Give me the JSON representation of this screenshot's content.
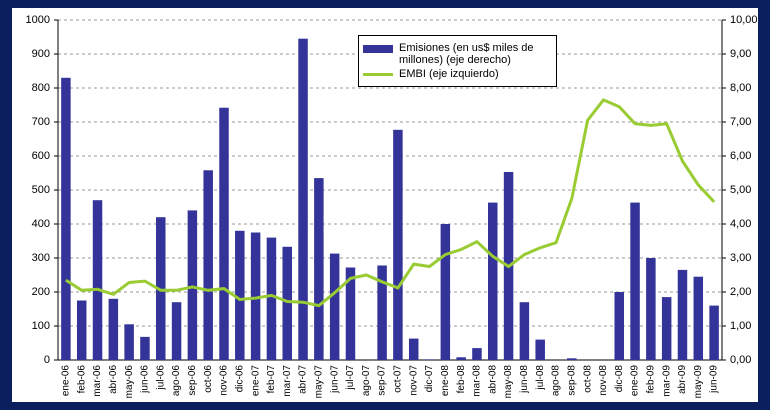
{
  "chart_data": {
    "type": "bar-line",
    "categories": [
      "ene-06",
      "feb-06",
      "mar-06",
      "abr-06",
      "may-06",
      "jun-06",
      "jul-06",
      "ago-06",
      "sep-06",
      "oct-06",
      "nov-06",
      "dic-06",
      "ene-07",
      "feb-07",
      "mar-07",
      "abr-07",
      "may-07",
      "jun-07",
      "jul-07",
      "ago-07",
      "sep-07",
      "oct-07",
      "nov-07",
      "dic-07",
      "ene-08",
      "feb-08",
      "mar-08",
      "abr-08",
      "may-08",
      "jun-08",
      "jul-08",
      "ago-08",
      "sep-08",
      "oct-08",
      "nov-08",
      "dic-08",
      "ene-09",
      "feb-09",
      "mar-09",
      "abr-09",
      "may-09",
      "jun-09"
    ],
    "series": [
      {
        "name": "Emisiones (en us$ miles de millones) (eje derecho)",
        "type": "bar",
        "axis": "y2",
        "color": "#333399",
        "values": [
          8.3,
          1.75,
          4.7,
          1.8,
          1.05,
          0.68,
          4.2,
          1.7,
          4.4,
          5.58,
          7.42,
          3.8,
          3.75,
          3.6,
          3.33,
          9.45,
          5.35,
          3.13,
          2.72,
          0,
          2.78,
          6.77,
          0.63,
          0.02,
          4.0,
          0.08,
          0.35,
          4.63,
          5.53,
          1.7,
          0.6,
          0,
          0.05,
          0,
          0,
          2.0,
          4.63,
          3.0,
          1.85,
          2.65,
          2.45,
          1.6
        ]
      },
      {
        "name": "EMBI (eje izquierdo)",
        "type": "line",
        "color": "#99cc33",
        "values": [
          235,
          205,
          208,
          193,
          228,
          232,
          205,
          205,
          215,
          205,
          210,
          178,
          182,
          190,
          172,
          170,
          160,
          198,
          240,
          250,
          230,
          212,
          282,
          275,
          310,
          325,
          348,
          305,
          275,
          310,
          330,
          345,
          475,
          705,
          765,
          745,
          695,
          690,
          695,
          585,
          515,
          465
        ]
      }
    ],
    "ylim": [
      0,
      1000
    ],
    "yticks": [
      0,
      100,
      200,
      300,
      400,
      500,
      600,
      700,
      800,
      900,
      1000
    ],
    "y2lim": [
      0,
      10
    ],
    "y2ticks": [
      {
        "value": 0,
        "label": "0,00"
      },
      {
        "value": 1,
        "label": "1,00"
      },
      {
        "value": 2,
        "label": "2,00"
      },
      {
        "value": 3,
        "label": "3,00"
      },
      {
        "value": 4,
        "label": "4,00"
      },
      {
        "value": 5,
        "label": "5,00"
      },
      {
        "value": 6,
        "label": "6,00"
      },
      {
        "value": 7,
        "label": "7,00"
      },
      {
        "value": 8,
        "label": "8,00"
      },
      {
        "value": 9,
        "label": "9,00"
      },
      {
        "value": 10,
        "label": "10,00"
      }
    ],
    "grid": true
  }
}
